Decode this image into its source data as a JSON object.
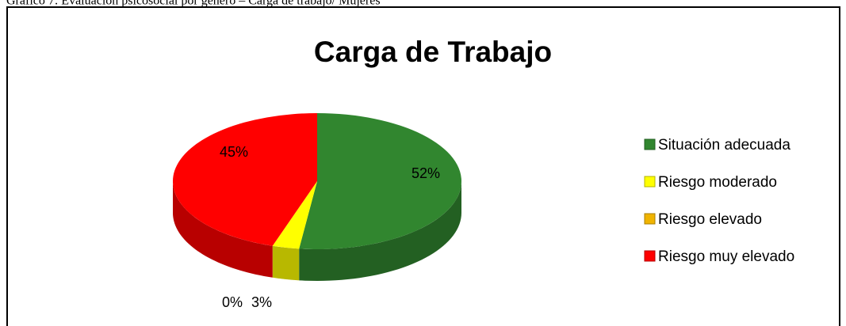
{
  "caption": "Gráfico 7: Evaluación psicosocial por género – Carga de trabajo/ Mujeres",
  "chart_data": {
    "type": "pie",
    "title": "Carga de Trabajo",
    "categories": [
      "Situación adecuada",
      "Riesgo moderado",
      "Riesgo elevado",
      "Riesgo muy elevado"
    ],
    "values": [
      52,
      3,
      0,
      45
    ],
    "value_labels": [
      "52%",
      "3%",
      "0%",
      "45%"
    ],
    "colors": [
      "#31862f",
      "#ffff00",
      "#f0b400",
      "#ff0000"
    ],
    "legend": "right"
  }
}
